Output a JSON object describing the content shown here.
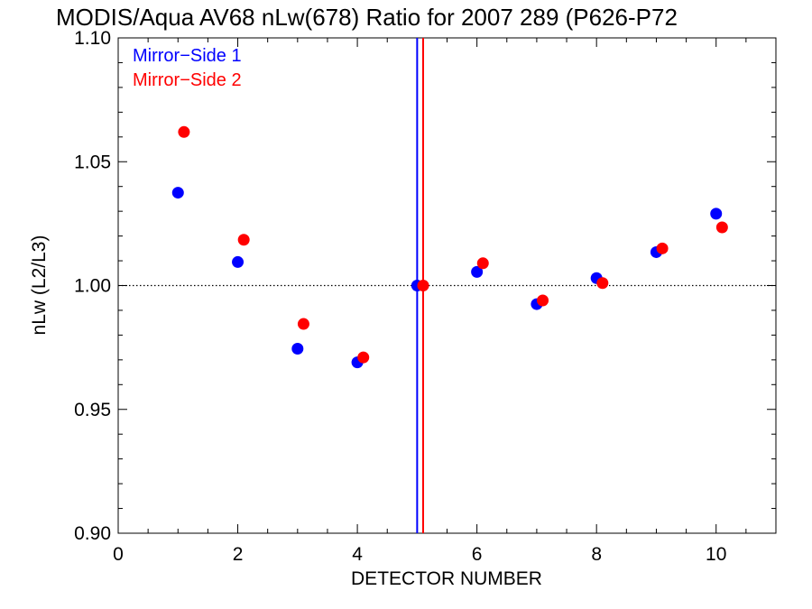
{
  "chart_data": {
    "type": "scatter",
    "title": "MODIS/Aqua AV68 nLw(678) Ratio for 2007 289 (P626-P72",
    "xlabel": "DETECTOR NUMBER",
    "ylabel": "nLw (L2/L3)",
    "xlim": [
      0,
      11
    ],
    "ylim": [
      0.9,
      1.1
    ],
    "xticks": [
      0,
      2,
      4,
      6,
      8,
      10
    ],
    "xtick_labels": [
      "0",
      "2",
      "4",
      "6",
      "8",
      "10"
    ],
    "yticks": [
      0.9,
      0.95,
      1.0,
      1.05,
      1.1
    ],
    "ytick_labels": [
      "0.90",
      "0.95",
      "1.00",
      "1.05",
      "1.10"
    ],
    "reference_line_y": 1.0,
    "legend_position": "top-left",
    "series": [
      {
        "name": "Mirror−Side 1",
        "color": "#0000ff",
        "x": [
          1,
          2,
          3,
          4,
          5,
          6,
          7,
          8,
          9,
          10
        ],
        "y": [
          1.0375,
          1.0095,
          0.9745,
          0.969,
          1.0,
          1.0055,
          0.9925,
          1.003,
          1.0135,
          1.029
        ],
        "vertical_line_x": 5.0
      },
      {
        "name": "Mirror−Side 2",
        "color": "#ff0000",
        "x": [
          1.1,
          2.1,
          3.1,
          4.1,
          5.1,
          6.1,
          7.1,
          8.1,
          9.1,
          10.1
        ],
        "y": [
          1.062,
          1.0185,
          0.9845,
          0.971,
          1.0,
          1.009,
          0.994,
          1.001,
          1.015,
          1.0235
        ],
        "vertical_line_x": 5.1
      }
    ]
  }
}
